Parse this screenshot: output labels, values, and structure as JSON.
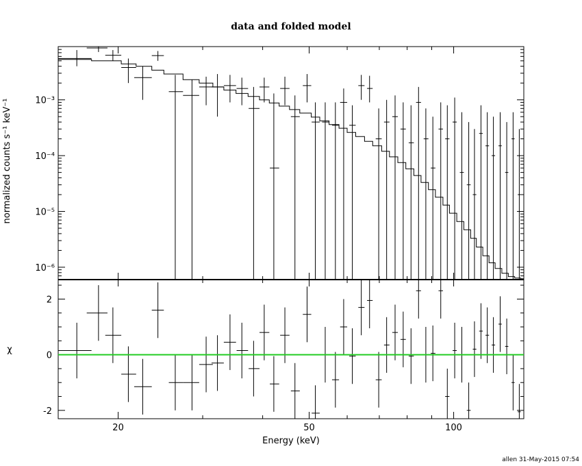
{
  "chart_data": {
    "type": "scatter",
    "title": "data and folded model",
    "xlabel": "Energy (keV)",
    "x_scale": "log",
    "xlim": [
      15,
      140
    ],
    "x_ticks": [
      20,
      50,
      100
    ],
    "top_panel": {
      "ylabel": "normalized counts s⁻¹ keV⁻¹",
      "y_scale": "log",
      "ylim": [
        6e-07,
        0.009
      ],
      "y_ticks": [
        {
          "value": 1e-06,
          "label": "10⁻⁶"
        },
        {
          "value": 1e-05,
          "label": "10⁻⁵"
        },
        {
          "value": 0.0001,
          "label": "10⁻⁴"
        },
        {
          "value": 0.001,
          "label": "10⁻³"
        }
      ],
      "series": [
        {
          "kind": "data",
          "points": [
            {
              "x": 16.4,
              "y": 0.0055,
              "xlo": 15.0,
              "xhi": 17.6,
              "ylo": 0.004,
              "yhi": 0.0078
            },
            {
              "x": 18.2,
              "y": 0.0085,
              "xlo": 17.2,
              "xhi": 19.0,
              "ylo": 0.0072,
              "yhi": 0.0092
            },
            {
              "x": 19.5,
              "y": 0.0063,
              "xlo": 18.8,
              "xhi": 20.3,
              "ylo": 0.005,
              "yhi": 0.0078
            },
            {
              "x": 21.0,
              "y": 0.0038,
              "xlo": 20.3,
              "xhi": 21.8,
              "ylo": 0.002,
              "yhi": 0.0055
            },
            {
              "x": 22.5,
              "y": 0.0025,
              "xlo": 21.6,
              "xhi": 23.5,
              "ylo": 0.001,
              "yhi": 0.004
            },
            {
              "x": 24.2,
              "y": 0.0062,
              "xlo": 23.5,
              "xhi": 24.9,
              "ylo": 0.005,
              "yhi": 0.0075
            },
            {
              "x": 26.3,
              "y": 0.0014,
              "xlo": 25.5,
              "xhi": 27.3,
              "ylo": 6e-07,
              "yhi": 0.0028
            },
            {
              "x": 28.5,
              "y": 0.0012,
              "xlo": 27.3,
              "xhi": 29.5,
              "ylo": 6e-07,
              "yhi": 0.0023
            },
            {
              "x": 30.5,
              "y": 0.0017,
              "xlo": 29.5,
              "xhi": 31.5,
              "ylo": 0.0008,
              "yhi": 0.0026
            },
            {
              "x": 32.2,
              "y": 0.0017,
              "xlo": 31.3,
              "xhi": 33.2,
              "ylo": 0.0005,
              "yhi": 0.0029
            },
            {
              "x": 34.2,
              "y": 0.0018,
              "xlo": 33.2,
              "xhi": 35.2,
              "ylo": 0.0009,
              "yhi": 0.0028
            },
            {
              "x": 36.2,
              "y": 0.0016,
              "xlo": 35.3,
              "xhi": 37.3,
              "ylo": 0.0008,
              "yhi": 0.0025
            },
            {
              "x": 38.3,
              "y": 0.0007,
              "xlo": 37.4,
              "xhi": 39.4,
              "ylo": 6e-07,
              "yhi": 0.0017
            },
            {
              "x": 40.3,
              "y": 0.0017,
              "xlo": 39.4,
              "xhi": 41.3,
              "ylo": 0.0009,
              "yhi": 0.0025
            },
            {
              "x": 42.2,
              "y": 6e-05,
              "xlo": 41.4,
              "xhi": 43.3,
              "ylo": 6e-07,
              "yhi": 0.0013
            },
            {
              "x": 44.5,
              "y": 0.0016,
              "xlo": 43.5,
              "xhi": 45.5,
              "ylo": 0.0008,
              "yhi": 0.0026
            },
            {
              "x": 46.7,
              "y": 0.0005,
              "xlo": 45.8,
              "xhi": 47.8,
              "ylo": 6e-07,
              "yhi": 0.0012
            },
            {
              "x": 49.5,
              "y": 0.0018,
              "xlo": 48.5,
              "xhi": 50.5,
              "ylo": 0.0009,
              "yhi": 0.0029
            },
            {
              "x": 51.5,
              "y": 0.0004,
              "xlo": 50.6,
              "xhi": 52.6,
              "ylo": 6e-07,
              "yhi": 0.0009
            },
            {
              "x": 54.0,
              "y": 0.0004,
              "xlo": 53.2,
              "xhi": 55.0,
              "ylo": 6e-07,
              "yhi": 0.0009
            },
            {
              "x": 56.7,
              "y": 0.00035,
              "xlo": 55.8,
              "xhi": 57.7,
              "ylo": 6e-07,
              "yhi": 0.0009
            },
            {
              "x": 59.0,
              "y": 0.0009,
              "xlo": 58.0,
              "xhi": 60.0,
              "ylo": 6e-07,
              "yhi": 0.0016
            },
            {
              "x": 61.5,
              "y": 0.00035,
              "xlo": 60.6,
              "xhi": 62.5,
              "ylo": 6e-07,
              "yhi": 0.0008
            },
            {
              "x": 64.2,
              "y": 0.0018,
              "xlo": 63.3,
              "xhi": 65.2,
              "ylo": 0.001,
              "yhi": 0.0028
            },
            {
              "x": 66.8,
              "y": 0.0016,
              "xlo": 66.0,
              "xhi": 67.8,
              "ylo": 0.0009,
              "yhi": 0.0027
            },
            {
              "x": 69.8,
              "y": 0.0002,
              "xlo": 68.8,
              "xhi": 70.8,
              "ylo": 6e-07,
              "yhi": 0.0007
            },
            {
              "x": 72.5,
              "y": 0.0004,
              "xlo": 71.6,
              "xhi": 73.5,
              "ylo": 6e-07,
              "yhi": 0.001
            },
            {
              "x": 75.5,
              "y": 0.0005,
              "xlo": 74.5,
              "xhi": 76.5,
              "ylo": 6e-07,
              "yhi": 0.0012
            },
            {
              "x": 78.5,
              "y": 0.0003,
              "xlo": 77.5,
              "xhi": 79.5,
              "ylo": 6e-07,
              "yhi": 0.0009
            },
            {
              "x": 81.5,
              "y": 0.00017,
              "xlo": 80.6,
              "xhi": 82.6,
              "ylo": 6e-07,
              "yhi": 0.0008
            },
            {
              "x": 84.5,
              "y": 0.0009,
              "xlo": 83.5,
              "xhi": 85.5,
              "ylo": 6e-07,
              "yhi": 0.0017
            },
            {
              "x": 87.5,
              "y": 0.0002,
              "xlo": 86.6,
              "xhi": 88.6,
              "ylo": 6e-07,
              "yhi": 0.0007
            },
            {
              "x": 90.5,
              "y": 6e-05,
              "xlo": 89.6,
              "xhi": 91.6,
              "ylo": 6e-07,
              "yhi": 0.0005
            },
            {
              "x": 94.0,
              "y": 0.0003,
              "xlo": 93.0,
              "xhi": 95.0,
              "ylo": 6e-07,
              "yhi": 0.0009
            },
            {
              "x": 97.0,
              "y": 0.0002,
              "xlo": 96.0,
              "xhi": 98.0,
              "ylo": 6e-07,
              "yhi": 0.0008
            },
            {
              "x": 100.5,
              "y": 0.0004,
              "xlo": 99.5,
              "xhi": 101.5,
              "ylo": 6e-07,
              "yhi": 0.0011
            },
            {
              "x": 104.0,
              "y": 5e-05,
              "xlo": 103.0,
              "xhi": 105.0,
              "ylo": 6e-07,
              "yhi": 0.0006
            },
            {
              "x": 107.5,
              "y": 3e-05,
              "xlo": 106.5,
              "xhi": 108.5,
              "ylo": 6e-07,
              "yhi": 0.0004
            },
            {
              "x": 110.5,
              "y": 2e-05,
              "xlo": 109.6,
              "xhi": 111.5,
              "ylo": 6e-07,
              "yhi": 0.0003
            },
            {
              "x": 114.0,
              "y": 0.00025,
              "xlo": 113.0,
              "xhi": 115.0,
              "ylo": 6e-07,
              "yhi": 0.0008
            },
            {
              "x": 117.5,
              "y": 0.00015,
              "xlo": 116.5,
              "xhi": 118.5,
              "ylo": 6e-07,
              "yhi": 0.0006
            },
            {
              "x": 121.0,
              "y": 0.0001,
              "xlo": 120.0,
              "xhi": 122.0,
              "ylo": 6e-07,
              "yhi": 0.0005
            },
            {
              "x": 125.0,
              "y": 0.00015,
              "xlo": 124.0,
              "xhi": 126.0,
              "ylo": 6e-07,
              "yhi": 0.0006
            },
            {
              "x": 129.0,
              "y": 5e-05,
              "xlo": 128.0,
              "xhi": 130.0,
              "ylo": 6e-07,
              "yhi": 0.0004
            },
            {
              "x": 133.0,
              "y": 0.0002,
              "xlo": 132.0,
              "xhi": 134.0,
              "ylo": 6e-07,
              "yhi": 0.0006
            },
            {
              "x": 137.0,
              "y": 2e-05,
              "xlo": 136.0,
              "xhi": 138.0,
              "ylo": 6e-07,
              "yhi": 0.0003
            }
          ]
        },
        {
          "kind": "model",
          "step_x": [
            15.0,
            17.6,
            20.3,
            21.8,
            23.5,
            24.9,
            27.3,
            29.5,
            31.5,
            33.2,
            35.2,
            37.3,
            39.4,
            41.3,
            43.3,
            45.5,
            47.8,
            50.5,
            52.6,
            55.0,
            57.7,
            60.0,
            62.5,
            65.2,
            67.8,
            70.8,
            73.5,
            76.5,
            79.5,
            82.6,
            85.5,
            88.6,
            91.6,
            95.0,
            98.0,
            101.5,
            105.0,
            108.5,
            111.5,
            115.0,
            118.5,
            122.0,
            126.0,
            130.0,
            134.0,
            138.0,
            140.0
          ],
          "step_y": [
            0.0053,
            0.005,
            0.0044,
            0.004,
            0.0034,
            0.0029,
            0.0023,
            0.002,
            0.0017,
            0.0015,
            0.0013,
            0.00115,
            0.001,
            0.00088,
            0.00077,
            0.00067,
            0.00058,
            0.00049,
            0.00042,
            0.00036,
            0.00031,
            0.00026,
            0.00022,
            0.00018,
            0.00015,
            0.00012,
            9.5e-05,
            7.5e-05,
            5.8e-05,
            4.4e-05,
            3.3e-05,
            2.45e-05,
            1.8e-05,
            1.3e-05,
            9.3e-06,
            6.6e-06,
            4.7e-06,
            3.3e-06,
            2.3e-06,
            1.6e-06,
            1.2e-06,
            9.5e-07,
            7.8e-07,
            6.8e-07,
            6.4e-07,
            6.2e-07
          ]
        }
      ]
    },
    "bottom_panel": {
      "ylabel": "χ",
      "ylim": [
        -2.3,
        2.7
      ],
      "y_ticks": [
        -2,
        0,
        2
      ],
      "reference_line": {
        "y": 0,
        "color": "#22cc22"
      },
      "chi": [
        0.15,
        1.5,
        0.7,
        -0.7,
        -1.15,
        1.6,
        -1.0,
        -1.0,
        -0.35,
        -0.3,
        0.45,
        0.15,
        -0.5,
        0.8,
        -1.05,
        0.7,
        -1.3,
        1.45,
        -2.1,
        0.0,
        -0.9,
        1.0,
        -0.05,
        1.7,
        1.95,
        -0.9,
        0.35,
        0.8,
        0.55,
        -0.05,
        2.3,
        0.0,
        0.05,
        2.3,
        -1.5,
        0.15,
        0.0,
        -2.0,
        0.2,
        0.85,
        0.7,
        0.35,
        1.1,
        0.3,
        -1.0,
        -2.05
      ]
    }
  },
  "footer": "allen 31-May-2015 07:54"
}
